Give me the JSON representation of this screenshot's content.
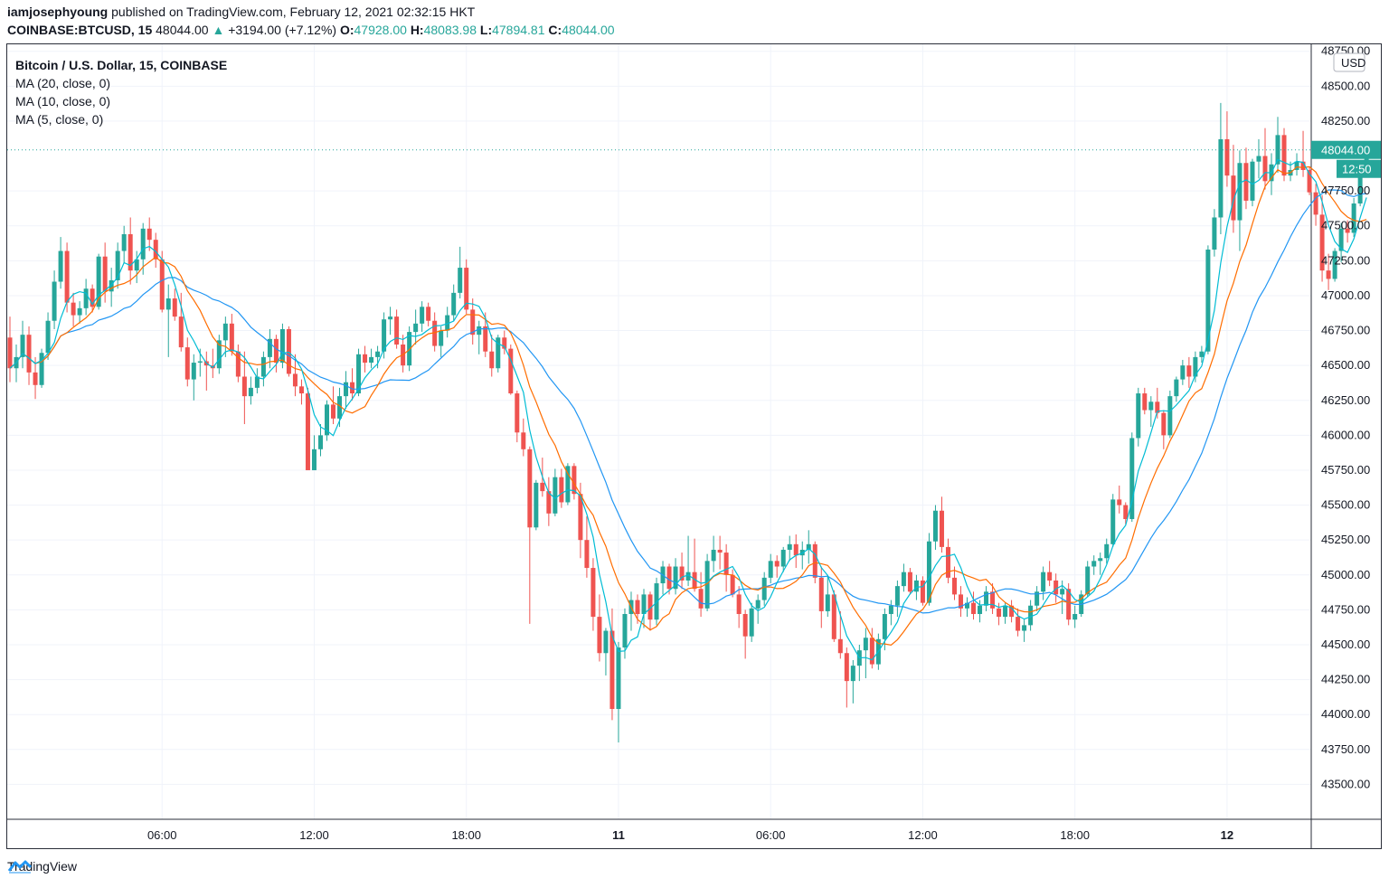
{
  "header": {
    "author": "iamjosephyoung",
    "published_text": "published on TradingView.com, February 12, 2021 02:32:15 HKT",
    "symbol": "COINBASE:BTCUSD, 15",
    "last": "48044.00",
    "change": "+3194.00 (+7.12%)",
    "o_label": "O:",
    "o_value": "47928.00",
    "h_label": "H:",
    "h_value": "48083.98",
    "l_label": "L:",
    "l_value": "47894.81",
    "c_label": "C:",
    "c_value": "48044.00"
  },
  "legend": {
    "title": "Bitcoin / U.S. Dollar, 15, COINBASE",
    "ma20": "MA (20, close, 0)",
    "ma10": "MA (10, close, 0)",
    "ma5": "MA (5, close, 0)"
  },
  "footer": {
    "brand": "TradingView"
  },
  "colors": {
    "up": "#26a69a",
    "down": "#ef5350",
    "ma20": "#2196f3",
    "ma10": "#ff6d00",
    "ma5": "#00bcd4"
  },
  "chart_data": {
    "type": "candlestick",
    "currency_label": "USD",
    "last_price_label": "48044.00",
    "countdown_label": "12:50",
    "ylim": [
      43250,
      48800
    ],
    "y_ticks": [
      43500,
      43750,
      44000,
      44250,
      44500,
      44750,
      45000,
      45250,
      45500,
      45750,
      46000,
      46250,
      46500,
      46750,
      47000,
      47250,
      47500,
      47750,
      48250,
      48500,
      48750
    ],
    "y_tick_labels": [
      "43500.00",
      "43750.00",
      "44000.00",
      "44250.00",
      "44500.00",
      "44750.00",
      "45000.00",
      "45250.00",
      "45500.00",
      "45750.00",
      "46000.00",
      "46250.00",
      "46500.00",
      "46750.00",
      "47000.00",
      "47250.00",
      "47500.00",
      "47750.00",
      "48250.00",
      "48500.00",
      "48750.00"
    ],
    "x_ticks": [
      {
        "label": "06:00",
        "bar": 24,
        "bold": false
      },
      {
        "label": "12:00",
        "bar": 48,
        "bold": false
      },
      {
        "label": "18:00",
        "bar": 72,
        "bold": false
      },
      {
        "label": "11",
        "bar": 96,
        "bold": true
      },
      {
        "label": "06:00",
        "bar": 120,
        "bold": false
      },
      {
        "label": "12:00",
        "bar": 144,
        "bold": false
      },
      {
        "label": "18:00",
        "bar": 168,
        "bold": false
      },
      {
        "label": "12",
        "bar": 192,
        "bold": true
      }
    ],
    "series": [
      {
        "name": "MA (20, close, 0)",
        "period": 20
      },
      {
        "name": "MA (10, close, 0)",
        "period": 10
      },
      {
        "name": "MA (5, close, 0)",
        "period": 5
      }
    ],
    "ohlc": [
      [
        46700,
        46850,
        46380,
        46480
      ],
      [
        46480,
        46650,
        46380,
        46560
      ],
      [
        46560,
        46820,
        46480,
        46720
      ],
      [
        46720,
        46780,
        46360,
        46450
      ],
      [
        46450,
        46560,
        46260,
        46360
      ],
      [
        46360,
        46620,
        46340,
        46590
      ],
      [
        46590,
        46880,
        46540,
        46820
      ],
      [
        46820,
        47180,
        46760,
        47100
      ],
      [
        47100,
        47420,
        47050,
        47320
      ],
      [
        47320,
        47380,
        46880,
        46950
      ],
      [
        46950,
        47020,
        46780,
        46860
      ],
      [
        46860,
        46960,
        46800,
        46910
      ],
      [
        46910,
        47120,
        46860,
        47050
      ],
      [
        47050,
        47080,
        46880,
        46920
      ],
      [
        46920,
        47300,
        46900,
        47280
      ],
      [
        47280,
        47380,
        46950,
        47030
      ],
      [
        47030,
        47200,
        46920,
        47110
      ],
      [
        47110,
        47380,
        47050,
        47320
      ],
      [
        47320,
        47500,
        47230,
        47440
      ],
      [
        47440,
        47560,
        47080,
        47180
      ],
      [
        47180,
        47320,
        47090,
        47260
      ],
      [
        47260,
        47520,
        47150,
        47480
      ],
      [
        47480,
        47560,
        47320,
        47400
      ],
      [
        47400,
        47450,
        47200,
        47260
      ],
      [
        47260,
        47320,
        46880,
        46900
      ],
      [
        46900,
        47080,
        46560,
        46980
      ],
      [
        46980,
        47050,
        46820,
        46850
      ],
      [
        46850,
        47020,
        46600,
        46630
      ],
      [
        46630,
        46700,
        46350,
        46400
      ],
      [
        46400,
        46580,
        46250,
        46520
      ],
      [
        46520,
        46620,
        46420,
        46530
      ],
      [
        46530,
        46600,
        46320,
        46500
      ],
      [
        46500,
        46620,
        46410,
        46480
      ],
      [
        46480,
        46720,
        46440,
        46680
      ],
      [
        46680,
        46850,
        46560,
        46800
      ],
      [
        46800,
        46870,
        46570,
        46600
      ],
      [
        46600,
        46650,
        46380,
        46420
      ],
      [
        46420,
        46600,
        46080,
        46280
      ],
      [
        46280,
        46420,
        46220,
        46340
      ],
      [
        46340,
        46480,
        46300,
        46420
      ],
      [
        46420,
        46600,
        46350,
        46560
      ],
      [
        46560,
        46760,
        46480,
        46690
      ],
      [
        46690,
        46720,
        46450,
        46520
      ],
      [
        46520,
        46800,
        46480,
        46760
      ],
      [
        46760,
        46780,
        46420,
        46440
      ],
      [
        46440,
        46580,
        46280,
        46350
      ],
      [
        46350,
        46400,
        46220,
        46300
      ],
      [
        46300,
        46340,
        45750,
        45750
      ],
      [
        45750,
        46000,
        45750,
        45900
      ],
      [
        45900,
        46080,
        45850,
        46000
      ],
      [
        46000,
        46250,
        45960,
        46220
      ],
      [
        46220,
        46350,
        46080,
        46120
      ],
      [
        46120,
        46340,
        46060,
        46280
      ],
      [
        46280,
        46460,
        46190,
        46380
      ],
      [
        46380,
        46480,
        46250,
        46300
      ],
      [
        46300,
        46620,
        46280,
        46580
      ],
      [
        46580,
        46640,
        46450,
        46520
      ],
      [
        46520,
        46620,
        46480,
        46560
      ],
      [
        46560,
        46640,
        46480,
        46600
      ],
      [
        46600,
        46880,
        46550,
        46830
      ],
      [
        46830,
        46920,
        46720,
        46850
      ],
      [
        46850,
        46900,
        46620,
        46650
      ],
      [
        46650,
        46720,
        46450,
        46500
      ],
      [
        46500,
        46780,
        46460,
        46740
      ],
      [
        46740,
        46900,
        46650,
        46800
      ],
      [
        46800,
        46960,
        46740,
        46920
      ],
      [
        46920,
        46950,
        46780,
        46820
      ],
      [
        46820,
        46880,
        46600,
        46640
      ],
      [
        46640,
        46780,
        46560,
        46750
      ],
      [
        46750,
        46920,
        46700,
        46860
      ],
      [
        46860,
        47080,
        46820,
        47020
      ],
      [
        47020,
        47350,
        46980,
        47200
      ],
      [
        47200,
        47260,
        46870,
        46900
      ],
      [
        46900,
        46980,
        46650,
        46720
      ],
      [
        46720,
        46820,
        46580,
        46780
      ],
      [
        46780,
        46880,
        46560,
        46600
      ],
      [
        46600,
        46720,
        46420,
        46480
      ],
      [
        46480,
        46720,
        46450,
        46700
      ],
      [
        46700,
        46750,
        46580,
        46620
      ],
      [
        46620,
        46650,
        46290,
        46300
      ],
      [
        46300,
        46320,
        45950,
        46020
      ],
      [
        46020,
        46120,
        45850,
        45900
      ],
      [
        45900,
        45920,
        44650,
        45340
      ],
      [
        45340,
        45680,
        45320,
        45660
      ],
      [
        45660,
        45840,
        45560,
        45600
      ],
      [
        45600,
        45700,
        45350,
        45440
      ],
      [
        45440,
        45760,
        45420,
        45700
      ],
      [
        45700,
        45760,
        45480,
        45520
      ],
      [
        45520,
        45800,
        45500,
        45780
      ],
      [
        45780,
        45800,
        45540,
        45580
      ],
      [
        45580,
        45660,
        45120,
        45250
      ],
      [
        45250,
        45420,
        44980,
        45050
      ],
      [
        45050,
        45120,
        44600,
        44700
      ],
      [
        44700,
        44860,
        44380,
        44440
      ],
      [
        44440,
        44620,
        44280,
        44600
      ],
      [
        44600,
        44760,
        43960,
        44040
      ],
      [
        44040,
        44520,
        43800,
        44480
      ],
      [
        44480,
        44760,
        44400,
        44720
      ],
      [
        44720,
        44880,
        44600,
        44820
      ],
      [
        44820,
        44860,
        44650,
        44720
      ],
      [
        44720,
        44900,
        44620,
        44860
      ],
      [
        44860,
        44880,
        44600,
        44680
      ],
      [
        44680,
        44980,
        44640,
        44940
      ],
      [
        44940,
        45100,
        44860,
        45060
      ],
      [
        45060,
        45080,
        44860,
        44900
      ],
      [
        44900,
        45120,
        44860,
        45060
      ],
      [
        45060,
        45160,
        44900,
        44960
      ],
      [
        44960,
        45280,
        44920,
        45020
      ],
      [
        45020,
        45260,
        44880,
        44900
      ],
      [
        44900,
        45020,
        44700,
        44760
      ],
      [
        44760,
        45150,
        44740,
        45100
      ],
      [
        45100,
        45280,
        45020,
        45180
      ],
      [
        45180,
        45280,
        45040,
        45160
      ],
      [
        45160,
        45220,
        44880,
        45000
      ],
      [
        45000,
        45040,
        44840,
        44860
      ],
      [
        44860,
        44920,
        44620,
        44720
      ],
      [
        44720,
        44750,
        44400,
        44560
      ],
      [
        44560,
        44800,
        44520,
        44760
      ],
      [
        44760,
        44860,
        44650,
        44820
      ],
      [
        44820,
        45020,
        44780,
        44980
      ],
      [
        44980,
        45150,
        44940,
        45100
      ],
      [
        45100,
        45140,
        44980,
        45060
      ],
      [
        45060,
        45200,
        45020,
        45180
      ],
      [
        45180,
        45280,
        45100,
        45220
      ],
      [
        45220,
        45290,
        45050,
        45140
      ],
      [
        45140,
        45240,
        45040,
        45180
      ],
      [
        45180,
        45320,
        45080,
        45220
      ],
      [
        45220,
        45240,
        44940,
        44980
      ],
      [
        44980,
        45060,
        44620,
        44740
      ],
      [
        44740,
        45000,
        44700,
        44860
      ],
      [
        44860,
        44890,
        44520,
        44540
      ],
      [
        44540,
        44740,
        44400,
        44440
      ],
      [
        44440,
        44480,
        44050,
        44240
      ],
      [
        44240,
        44390,
        44080,
        44350
      ],
      [
        44350,
        44500,
        44240,
        44460
      ],
      [
        44460,
        44620,
        44260,
        44550
      ],
      [
        44550,
        44620,
        44330,
        44360
      ],
      [
        44360,
        44580,
        44320,
        44540
      ],
      [
        44540,
        44760,
        44460,
        44720
      ],
      [
        44720,
        44820,
        44640,
        44780
      ],
      [
        44780,
        44960,
        44700,
        44920
      ],
      [
        44920,
        45080,
        44880,
        45020
      ],
      [
        45020,
        45050,
        44860,
        44880
      ],
      [
        44880,
        45000,
        44820,
        44960
      ],
      [
        44960,
        44990,
        44780,
        44800
      ],
      [
        44800,
        45300,
        44780,
        45240
      ],
      [
        45240,
        45500,
        45180,
        45460
      ],
      [
        45460,
        45560,
        45160,
        45200
      ],
      [
        45200,
        45260,
        44940,
        44980
      ],
      [
        44980,
        45060,
        44820,
        44860
      ],
      [
        44860,
        44920,
        44700,
        44760
      ],
      [
        44760,
        44840,
        44700,
        44800
      ],
      [
        44800,
        44880,
        44680,
        44720
      ],
      [
        44720,
        44820,
        44660,
        44780
      ],
      [
        44780,
        44920,
        44740,
        44880
      ],
      [
        44880,
        44940,
        44720,
        44760
      ],
      [
        44760,
        44800,
        44640,
        44700
      ],
      [
        44700,
        44800,
        44650,
        44780
      ],
      [
        44780,
        44820,
        44660,
        44700
      ],
      [
        44700,
        44760,
        44560,
        44600
      ],
      [
        44600,
        44680,
        44520,
        44640
      ],
      [
        44640,
        44820,
        44600,
        44780
      ],
      [
        44780,
        44920,
        44740,
        44880
      ],
      [
        44880,
        45060,
        44820,
        45020
      ],
      [
        45020,
        45100,
        44920,
        44960
      ],
      [
        44960,
        45010,
        44800,
        44860
      ],
      [
        44860,
        44960,
        44720,
        44900
      ],
      [
        44900,
        44940,
        44640,
        44680
      ],
      [
        44680,
        44780,
        44620,
        44720
      ],
      [
        44720,
        44890,
        44700,
        44860
      ],
      [
        44860,
        45100,
        44840,
        45060
      ],
      [
        45060,
        45140,
        45000,
        45100
      ],
      [
        45100,
        45160,
        45000,
        45120
      ],
      [
        45120,
        45260,
        45080,
        45220
      ],
      [
        45220,
        45580,
        45200,
        45540
      ],
      [
        45540,
        45640,
        45440,
        45500
      ],
      [
        45500,
        45520,
        45360,
        45400
      ],
      [
        45400,
        46020,
        45380,
        45980
      ],
      [
        45980,
        46340,
        45920,
        46300
      ],
      [
        46300,
        46340,
        46150,
        46180
      ],
      [
        46180,
        46280,
        46060,
        46240
      ],
      [
        46240,
        46340,
        46120,
        46160
      ],
      [
        46160,
        46180,
        45900,
        46000
      ],
      [
        46000,
        46320,
        45980,
        46280
      ],
      [
        46280,
        46420,
        46240,
        46400
      ],
      [
        46400,
        46540,
        46360,
        46500
      ],
      [
        46500,
        46560,
        46340,
        46420
      ],
      [
        46420,
        46600,
        46380,
        46560
      ],
      [
        46560,
        46640,
        46520,
        46600
      ],
      [
        46600,
        47360,
        46580,
        47330
      ],
      [
        47330,
        47620,
        47280,
        47560
      ],
      [
        47560,
        48380,
        47440,
        48120
      ],
      [
        48120,
        48320,
        47780,
        47860
      ],
      [
        47860,
        48080,
        47450,
        47540
      ],
      [
        47540,
        48040,
        47320,
        47950
      ],
      [
        47950,
        48060,
        47620,
        47680
      ],
      [
        47680,
        47980,
        47640,
        47960
      ],
      [
        47960,
        48120,
        47840,
        48000
      ],
      [
        48000,
        48200,
        47760,
        47820
      ],
      [
        47820,
        48020,
        47720,
        47940
      ],
      [
        47940,
        48280,
        47880,
        48150
      ],
      [
        48150,
        48200,
        47820,
        47860
      ],
      [
        47860,
        47960,
        47820,
        47900
      ],
      [
        47900,
        48020,
        47860,
        47960
      ],
      [
        47960,
        48180,
        47850,
        47900
      ],
      [
        47900,
        47920,
        47720,
        47740
      ],
      [
        47740,
        47800,
        47500,
        47580
      ],
      [
        47580,
        47720,
        47100,
        47180
      ],
      [
        47180,
        47300,
        47040,
        47120
      ],
      [
        47120,
        47340,
        47100,
        47320
      ],
      [
        47320,
        47520,
        47240,
        47480
      ],
      [
        47480,
        47540,
        47380,
        47450
      ],
      [
        47450,
        47700,
        47420,
        47660
      ],
      [
        47660,
        47900,
        47640,
        47880
      ],
      [
        47928,
        48083.98,
        47894.81,
        48044
      ]
    ]
  }
}
